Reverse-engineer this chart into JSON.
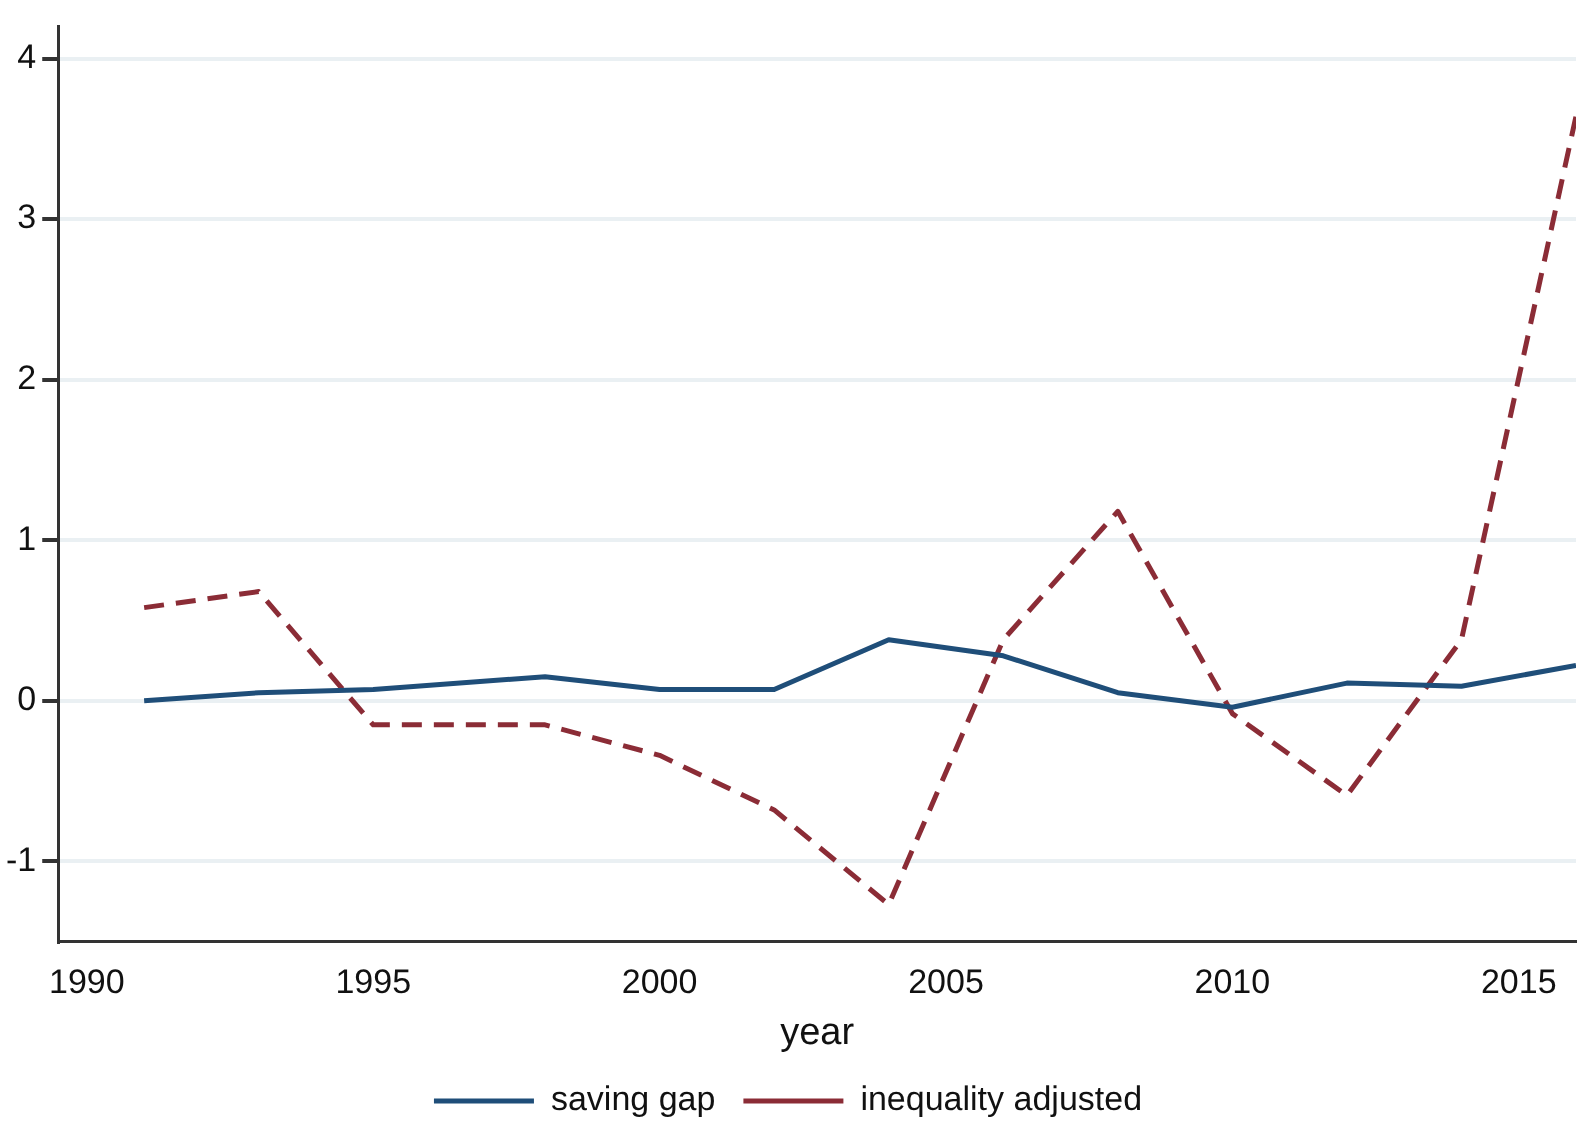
{
  "chart_data": {
    "type": "line",
    "xlabel": "year",
    "x": [
      1991,
      1993,
      1995,
      1998,
      2000,
      2002,
      2004,
      2006,
      2008,
      2010,
      2012,
      2014,
      2016
    ],
    "series": [
      {
        "name": "saving gap",
        "color": "#1f4e79",
        "line_style": "solid",
        "values": [
          0,
          0.05,
          0.07,
          0.15,
          0.07,
          0.07,
          0.38,
          0.28,
          0.05,
          -0.04,
          0.11,
          0.09,
          0.22
        ]
      },
      {
        "name": "inequality adjusted",
        "color": "#8b2c36",
        "line_style": "dashed",
        "values": [
          0.58,
          0.68,
          -0.15,
          -0.15,
          -0.34,
          -0.68,
          -1.27,
          0.38,
          1.18,
          -0.08,
          -0.59,
          0.38,
          3.64
        ]
      }
    ],
    "xlim": [
      1989.5,
      2016
    ],
    "xticks": [
      1990,
      1995,
      2000,
      2005,
      2010,
      2015
    ],
    "ylim": [
      -1.5,
      4.2
    ],
    "yticks": [
      -1,
      0,
      1,
      2,
      3,
      4
    ],
    "grid": "y",
    "legend": "bottom",
    "marker": "none"
  }
}
